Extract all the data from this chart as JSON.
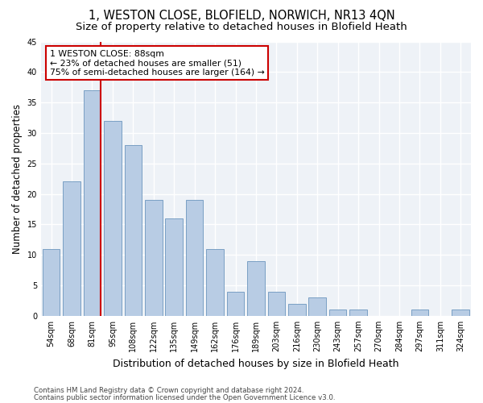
{
  "title": "1, WESTON CLOSE, BLOFIELD, NORWICH, NR13 4QN",
  "subtitle": "Size of property relative to detached houses in Blofield Heath",
  "xlabel": "Distribution of detached houses by size in Blofield Heath",
  "ylabel": "Number of detached properties",
  "categories": [
    "54sqm",
    "68sqm",
    "81sqm",
    "95sqm",
    "108sqm",
    "122sqm",
    "135sqm",
    "149sqm",
    "162sqm",
    "176sqm",
    "189sqm",
    "203sqm",
    "216sqm",
    "230sqm",
    "243sqm",
    "257sqm",
    "270sqm",
    "284sqm",
    "297sqm",
    "311sqm",
    "324sqm"
  ],
  "values": [
    11,
    22,
    37,
    32,
    28,
    19,
    16,
    19,
    11,
    4,
    9,
    4,
    2,
    3,
    1,
    1,
    0,
    0,
    1,
    0,
    1
  ],
  "bar_color": "#b8cce4",
  "bar_edgecolor": "#7aa0c4",
  "vline_color": "#cc0000",
  "annotation_text": "1 WESTON CLOSE: 88sqm\n← 23% of detached houses are smaller (51)\n75% of semi-detached houses are larger (164) →",
  "annotation_boxcolor": "white",
  "annotation_boxedgecolor": "#cc0000",
  "footer1": "Contains HM Land Registry data © Crown copyright and database right 2024.",
  "footer2": "Contains public sector information licensed under the Open Government Licence v3.0.",
  "ylim": [
    0,
    45
  ],
  "yticks": [
    0,
    5,
    10,
    15,
    20,
    25,
    30,
    35,
    40,
    45
  ],
  "background_color": "#eef2f7",
  "grid_color": "white",
  "title_fontsize": 10.5,
  "subtitle_fontsize": 9.5,
  "ylabel_fontsize": 8.5,
  "xlabel_fontsize": 9,
  "tick_fontsize": 7,
  "annotation_fontsize": 7.8,
  "footer_fontsize": 6.2
}
